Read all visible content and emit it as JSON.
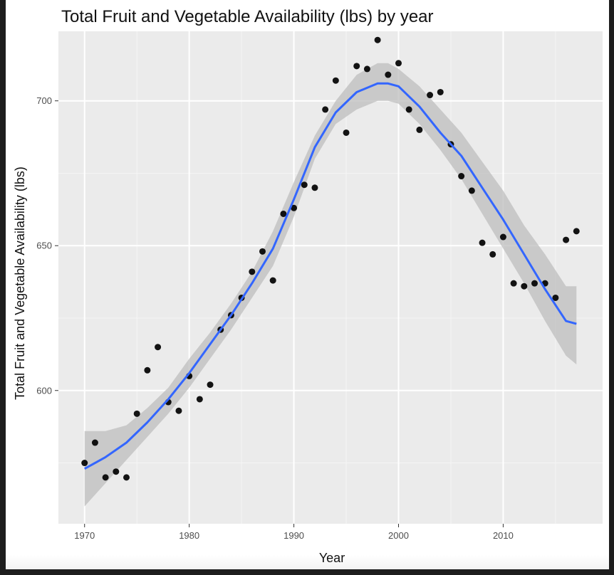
{
  "chart_data": {
    "type": "scatter",
    "title": "Total Fruit and Vegetable Availability (lbs) by year",
    "xlabel": "Year",
    "ylabel": "Total Fruit and Vegetable Availability (lbs)",
    "xlim": [
      1967.5,
      2019.5
    ],
    "ylim": [
      554,
      724
    ],
    "x_ticks": [
      1970,
      1980,
      1990,
      2000,
      2010
    ],
    "y_ticks": [
      600,
      650,
      700
    ],
    "grid": true,
    "legend": "none",
    "colors": {
      "panel": "#ebebeb",
      "grid_major": "#ffffff",
      "points": "#000000",
      "smooth_line": "#3366ff",
      "confidence_band": "#bdbdbd"
    },
    "points": {
      "x": [
        1970,
        1971,
        1972,
        1973,
        1974,
        1975,
        1976,
        1977,
        1978,
        1979,
        1980,
        1981,
        1982,
        1983,
        1984,
        1985,
        1986,
        1987,
        1988,
        1989,
        1990,
        1991,
        1992,
        1993,
        1994,
        1995,
        1996,
        1997,
        1998,
        1999,
        2000,
        2001,
        2002,
        2003,
        2004,
        2005,
        2006,
        2007,
        2008,
        2009,
        2010,
        2011,
        2012,
        2013,
        2014,
        2015,
        2016,
        2017
      ],
      "y": [
        575,
        582,
        570,
        572,
        570,
        592,
        607,
        615,
        596,
        593,
        605,
        597,
        602,
        621,
        626,
        632,
        641,
        648,
        638,
        661,
        663,
        671,
        670,
        697,
        707,
        689,
        712,
        711,
        721,
        709,
        713,
        697,
        690,
        702,
        703,
        685,
        674,
        669,
        651,
        647,
        653,
        637,
        636,
        637,
        637,
        632,
        652,
        655
      ]
    },
    "smooth": {
      "method": "loess",
      "x": [
        1970,
        1972,
        1974,
        1976,
        1978,
        1980,
        1982,
        1984,
        1986,
        1988,
        1990,
        1992,
        1994,
        1996,
        1998,
        1999,
        2000,
        2002,
        2004,
        2006,
        2008,
        2010,
        2012,
        2014,
        2016,
        2017
      ],
      "y": [
        573,
        577,
        582,
        589,
        597,
        606,
        616,
        626,
        637,
        649,
        666,
        684,
        696,
        703,
        706,
        706,
        705,
        698,
        689,
        681,
        670,
        659,
        647,
        635,
        624,
        623
      ],
      "upper": [
        586,
        586,
        588,
        594,
        601,
        611,
        620,
        630,
        641,
        655,
        672,
        688,
        700,
        709,
        713,
        713,
        711,
        705,
        697,
        689,
        679,
        669,
        657,
        647,
        636,
        636
      ],
      "lower": [
        560,
        568,
        576,
        584,
        592,
        601,
        611,
        621,
        632,
        643,
        660,
        680,
        692,
        697,
        700,
        700,
        699,
        692,
        683,
        673,
        661,
        649,
        637,
        624,
        612,
        609
      ]
    }
  }
}
